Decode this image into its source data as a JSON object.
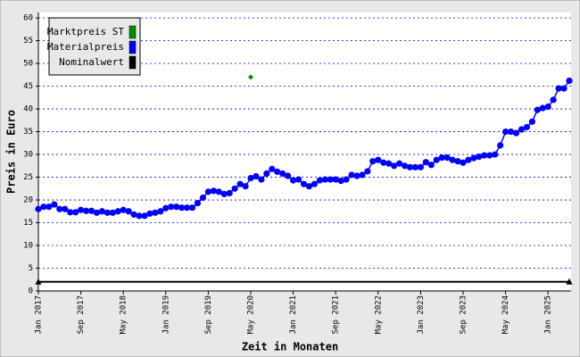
{
  "chart_data": {
    "type": "line",
    "x_label": "Zeit in Monaten",
    "y_label": "Preis in Euro",
    "xlim": [
      "2017-01",
      "2025-05"
    ],
    "xticks": [
      {
        "value": "2017-01",
        "label": "Jan 2017"
      },
      {
        "value": "2017-09",
        "label": "Sep 2017"
      },
      {
        "value": "2018-05",
        "label": "May 2018"
      },
      {
        "value": "2019-01",
        "label": "Jan 2019"
      },
      {
        "value": "2019-09",
        "label": "Sep 2019"
      },
      {
        "value": "2020-05",
        "label": "May 2020"
      },
      {
        "value": "2021-01",
        "label": "Jan 2021"
      },
      {
        "value": "2021-09",
        "label": "Sep 2021"
      },
      {
        "value": "2022-05",
        "label": "May 2022"
      },
      {
        "value": "2023-01",
        "label": "Jan 2023"
      },
      {
        "value": "2023-09",
        "label": "Sep 2023"
      },
      {
        "value": "2024-05",
        "label": "May 2024"
      },
      {
        "value": "2025-01",
        "label": "Jan 2025"
      }
    ],
    "ylim": [
      0,
      61.2
    ],
    "yticks": [
      0,
      5,
      10,
      15,
      20,
      25,
      30,
      35,
      40,
      45,
      50,
      55,
      60
    ],
    "grid": true,
    "legend": "upper left",
    "series": [
      {
        "name": "Marktpreis ST",
        "color": "#009000",
        "x": [
          "2020-05"
        ],
        "values": [
          47
        ]
      },
      {
        "name": "Materialpreis",
        "color": "#0000ff",
        "x": [
          "2017-01",
          "2017-02",
          "2017-03",
          "2017-04",
          "2017-05",
          "2017-06",
          "2017-07",
          "2017-08",
          "2017-09",
          "2017-10",
          "2017-11",
          "2017-12",
          "2018-01",
          "2018-02",
          "2018-03",
          "2018-04",
          "2018-05",
          "2018-06",
          "2018-07",
          "2018-08",
          "2018-09",
          "2018-10",
          "2018-11",
          "2018-12",
          "2019-01",
          "2019-02",
          "2019-03",
          "2019-04",
          "2019-05",
          "2019-06",
          "2019-07",
          "2019-08",
          "2019-09",
          "2019-10",
          "2019-11",
          "2019-12",
          "2020-01",
          "2020-02",
          "2020-03",
          "2020-04",
          "2020-05",
          "2020-06",
          "2020-07",
          "2020-08",
          "2020-09",
          "2020-10",
          "2020-11",
          "2020-12",
          "2021-01",
          "2021-02",
          "2021-03",
          "2021-04",
          "2021-05",
          "2021-06",
          "2021-07",
          "2021-08",
          "2021-09",
          "2021-10",
          "2021-11",
          "2021-12",
          "2022-01",
          "2022-02",
          "2022-03",
          "2022-04",
          "2022-05",
          "2022-06",
          "2022-07",
          "2022-08",
          "2022-09",
          "2022-10",
          "2022-11",
          "2022-12",
          "2023-01",
          "2023-02",
          "2023-03",
          "2023-04",
          "2023-05",
          "2023-06",
          "2023-07",
          "2023-08",
          "2023-09",
          "2023-10",
          "2023-11",
          "2023-12",
          "2024-01",
          "2024-02",
          "2024-03",
          "2024-04",
          "2024-05",
          "2024-06",
          "2024-07",
          "2024-08",
          "2024-09",
          "2024-10",
          "2024-11",
          "2024-12",
          "2025-01",
          "2025-02",
          "2025-03",
          "2025-04",
          "2025-05"
        ],
        "values": [
          18,
          18.5,
          18.5,
          19,
          18,
          18,
          17.3,
          17.3,
          17.8,
          17.6,
          17.6,
          17.2,
          17.5,
          17.2,
          17.2,
          17.5,
          17.8,
          17.5,
          16.8,
          16.5,
          16.5,
          17,
          17.2,
          17.5,
          18.2,
          18.5,
          18.5,
          18.3,
          18.3,
          18.3,
          19.3,
          20.5,
          21.8,
          22,
          21.8,
          21.3,
          21.5,
          22.5,
          23.5,
          23,
          24.8,
          25.2,
          24.5,
          25.8,
          26.8,
          26.2,
          25.8,
          25.3,
          24.3,
          24.5,
          23.5,
          23,
          23.5,
          24.3,
          24.5,
          24.5,
          24.5,
          24.2,
          24.5,
          25.5,
          25.3,
          25.5,
          26.3,
          28.5,
          28.8,
          28.2,
          28,
          27.5,
          28,
          27.5,
          27.2,
          27.2,
          27.2,
          28.3,
          27.7,
          28.8,
          29.3,
          29.3,
          28.8,
          28.5,
          28.2,
          28.8,
          29.2,
          29.5,
          29.8,
          29.8,
          30,
          32,
          35,
          35,
          34.7,
          35.5,
          36,
          37.2,
          39.8,
          40.2,
          40.5,
          42,
          44.5,
          44.5,
          46.2
        ]
      },
      {
        "name": "Nominalwert",
        "color": "#000000",
        "x": [
          "2017-01",
          "2025-05"
        ],
        "values": [
          2,
          2
        ]
      }
    ]
  }
}
